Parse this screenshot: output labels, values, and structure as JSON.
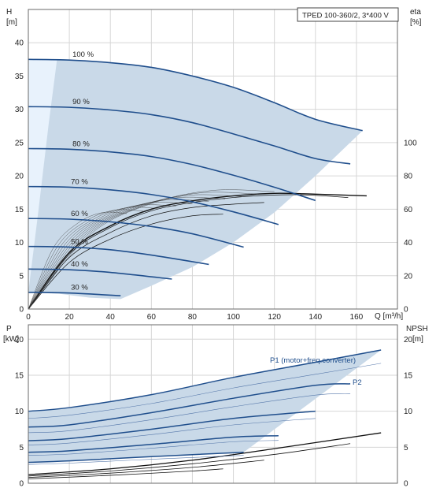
{
  "chart_data": [
    {
      "type": "line",
      "panel": "head-efficiency",
      "title": "TPED 100-360/2, 3*400 V",
      "xlabel": "Q [m³/h]",
      "ylabel_left": [
        "H",
        "[m]"
      ],
      "ylabel_right": [
        "eta",
        "[%]"
      ],
      "x_ticks": [
        0,
        20,
        40,
        60,
        80,
        100,
        120,
        140,
        160
      ],
      "xlim": [
        0,
        180
      ],
      "ylim_left": [
        0,
        45
      ],
      "ylim_right": [
        0,
        180
      ],
      "y_ticks_left": [
        0,
        5,
        10,
        15,
        20,
        25,
        30,
        35,
        40
      ],
      "y_ticks_right": [
        0,
        20,
        40,
        60,
        80,
        100
      ],
      "grid": true,
      "operating_area": {
        "upper": [
          [
            0,
            37.5
          ],
          [
            20,
            37.4
          ],
          [
            40,
            37.0
          ],
          [
            60,
            36.3
          ],
          [
            80,
            35.0
          ],
          [
            100,
            33.3
          ],
          [
            120,
            31.0
          ],
          [
            140,
            28.5
          ],
          [
            163,
            26.8
          ]
        ],
        "right": [
          [
            163,
            26.8
          ],
          [
            140,
            20.0
          ],
          [
            120,
            14.5
          ],
          [
            100,
            10.0
          ],
          [
            80,
            6.3
          ],
          [
            60,
            3.5
          ],
          [
            45,
            1.5
          ]
        ],
        "lower": [
          [
            45,
            1.5
          ],
          [
            30,
            1.7
          ],
          [
            15,
            2.3
          ],
          [
            0,
            2.5
          ]
        ],
        "min_speed_boundary": [
          [
            0,
            2.5
          ],
          [
            5,
            15
          ],
          [
            10,
            28
          ],
          [
            14,
            37.5
          ]
        ]
      },
      "speed_curves": [
        {
          "name": "100 %",
          "points": [
            [
              0,
              37.5
            ],
            [
              20,
              37.4
            ],
            [
              40,
              37.0
            ],
            [
              60,
              36.3
            ],
            [
              80,
              35.0
            ],
            [
              100,
              33.3
            ],
            [
              120,
              31.0
            ],
            [
              140,
              28.5
            ],
            [
              163,
              26.8
            ]
          ]
        },
        {
          "name": "90 %",
          "points": [
            [
              0,
              30.4
            ],
            [
              20,
              30.3
            ],
            [
              40,
              29.9
            ],
            [
              60,
              29.2
            ],
            [
              80,
              28.0
            ],
            [
              100,
              26.3
            ],
            [
              120,
              24.5
            ],
            [
              140,
              22.6
            ],
            [
              157,
              21.8
            ]
          ]
        },
        {
          "name": "80 %",
          "points": [
            [
              0,
              24.1
            ],
            [
              20,
              24.0
            ],
            [
              40,
              23.6
            ],
            [
              60,
              22.9
            ],
            [
              80,
              21.7
            ],
            [
              100,
              20.1
            ],
            [
              120,
              18.3
            ],
            [
              140,
              16.3
            ]
          ]
        },
        {
          "name": "70 %",
          "points": [
            [
              0,
              18.4
            ],
            [
              20,
              18.3
            ],
            [
              40,
              17.9
            ],
            [
              60,
              17.2
            ],
            [
              80,
              16.1
            ],
            [
              100,
              14.6
            ],
            [
              122,
              12.7
            ]
          ]
        },
        {
          "name": "60 %",
          "points": [
            [
              0,
              13.6
            ],
            [
              20,
              13.5
            ],
            [
              40,
              13.1
            ],
            [
              60,
              12.4
            ],
            [
              80,
              11.3
            ],
            [
              105,
              9.3
            ]
          ]
        },
        {
          "name": "50 %",
          "points": [
            [
              0,
              9.4
            ],
            [
              20,
              9.3
            ],
            [
              40,
              8.9
            ],
            [
              60,
              8.1
            ],
            [
              88,
              6.7
            ]
          ]
        },
        {
          "name": "40 %",
          "points": [
            [
              0,
              6.0
            ],
            [
              20,
              5.9
            ],
            [
              40,
              5.5
            ],
            [
              70,
              4.5
            ]
          ]
        },
        {
          "name": "30 %",
          "points": [
            [
              0,
              2.5
            ],
            [
              20,
              2.4
            ],
            [
              45,
              2.0
            ]
          ]
        }
      ],
      "efficiency_curves_percent": [
        {
          "points": [
            [
              0,
              0
            ],
            [
              20,
              34
            ],
            [
              40,
              50
            ],
            [
              60,
              60
            ],
            [
              80,
              65
            ],
            [
              100,
              68
            ],
            [
              120,
              69.5
            ],
            [
              140,
              69.0
            ],
            [
              165,
              68.0
            ]
          ]
        },
        {
          "points": [
            [
              0,
              0
            ],
            [
              20,
              33
            ],
            [
              40,
              49
            ],
            [
              60,
              59
            ],
            [
              80,
              64
            ],
            [
              100,
              67
            ],
            [
              120,
              68.5
            ],
            [
              136,
              68.5
            ],
            [
              156,
              67.0
            ]
          ]
        },
        {
          "points": [
            [
              0,
              0
            ],
            [
              20,
              31
            ],
            [
              40,
              46
            ],
            [
              60,
              56
            ],
            [
              80,
              61
            ],
            [
              100,
              63
            ],
            [
              115,
              64
            ]
          ]
        },
        {
          "points": [
            [
              0,
              0
            ],
            [
              20,
              28
            ],
            [
              40,
              42
            ],
            [
              60,
              51
            ],
            [
              80,
              56
            ],
            [
              95,
              57
            ]
          ]
        }
      ]
    },
    {
      "type": "line",
      "panel": "power-npsh",
      "ylabel_left": [
        "P",
        "[kW]"
      ],
      "ylabel_right": [
        "NPSH",
        "[m]"
      ],
      "xlim": [
        0,
        180
      ],
      "ylim_left": [
        0,
        22
      ],
      "ylim_right": [
        0,
        22
      ],
      "y_ticks_left": [
        0,
        5,
        10,
        15,
        20
      ],
      "y_ticks_right": [
        0,
        5,
        10,
        15,
        20
      ],
      "grid": true,
      "annotations": [
        "P1 (motor+freq.converter)",
        "P2"
      ],
      "p1_curves": [
        {
          "points": [
            [
              0,
              10.0
            ],
            [
              20,
              10.5
            ],
            [
              60,
              12.3
            ],
            [
              100,
              14.7
            ],
            [
              140,
              16.8
            ],
            [
              172,
              18.5
            ]
          ]
        },
        {
          "points": [
            [
              0,
              7.8
            ],
            [
              20,
              8.1
            ],
            [
              60,
              9.8
            ],
            [
              100,
              11.8
            ],
            [
              140,
              13.6
            ],
            [
              157,
              13.8
            ]
          ]
        },
        {
          "points": [
            [
              0,
              5.9
            ],
            [
              20,
              6.2
            ],
            [
              60,
              7.5
            ],
            [
              100,
              9.0
            ],
            [
              140,
              10.0
            ]
          ]
        },
        {
          "points": [
            [
              0,
              4.3
            ],
            [
              20,
              4.5
            ],
            [
              60,
              5.4
            ],
            [
              100,
              6.4
            ],
            [
              122,
              6.6
            ]
          ]
        },
        {
          "points": [
            [
              0,
              2.9
            ],
            [
              20,
              3.1
            ],
            [
              60,
              3.7
            ],
            [
              105,
              4.3
            ]
          ]
        }
      ],
      "npsh_curves": [
        {
          "points": [
            [
              0,
              1.2
            ],
            [
              40,
              2.0
            ],
            [
              80,
              3.2
            ],
            [
              120,
              4.8
            ],
            [
              172,
              7.0
            ]
          ]
        },
        {
          "points": [
            [
              0,
              1.0
            ],
            [
              40,
              1.7
            ],
            [
              80,
              2.7
            ],
            [
              120,
              4.0
            ],
            [
              157,
              5.5
            ]
          ]
        },
        {
          "points": [
            [
              0,
              0.8
            ],
            [
              40,
              1.4
            ],
            [
              80,
              2.2
            ],
            [
              115,
              3.2
            ]
          ]
        },
        {
          "points": [
            [
              0,
              0.6
            ],
            [
              40,
              1.1
            ],
            [
              80,
              1.7
            ],
            [
              95,
              2.0
            ]
          ]
        }
      ]
    }
  ],
  "colors": {
    "envelope_fill": "#c9d9e8",
    "min_speed_fill": "#e8f2fc",
    "speed_curve": "#1f4e8c",
    "power_curve": "#1f4e8c",
    "eff_curve": "#111111",
    "grid": "#d6d6d6",
    "frame": "#6a6a6a"
  }
}
